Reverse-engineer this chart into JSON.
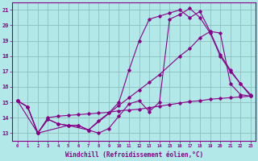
{
  "background_color": "#b3e8e8",
  "grid_color": "#8fbfbf",
  "line_color": "#880088",
  "xlabel": "Windchill (Refroidissement éolien,°C)",
  "xlim": [
    -0.5,
    23.5
  ],
  "ylim": [
    12.5,
    21.5
  ],
  "yticks": [
    13,
    14,
    15,
    16,
    17,
    18,
    19,
    20,
    21
  ],
  "xticks": [
    0,
    1,
    2,
    3,
    4,
    5,
    6,
    7,
    8,
    9,
    10,
    11,
    12,
    13,
    14,
    15,
    16,
    17,
    18,
    19,
    20,
    21,
    22,
    23
  ],
  "series": [
    {
      "x": [
        0,
        1,
        2,
        3,
        4,
        5,
        6,
        7,
        8,
        9,
        10,
        11,
        12,
        13,
        14,
        15,
        16,
        17,
        18,
        19,
        20,
        21,
        22,
        23
      ],
      "y": [
        15.1,
        14.7,
        13.0,
        13.9,
        13.6,
        13.5,
        13.5,
        13.2,
        13.8,
        14.3,
        15.0,
        17.1,
        19.0,
        20.4,
        20.6,
        20.8,
        21.0,
        20.5,
        20.9,
        19.6,
        18.1,
        17.1,
        16.2,
        15.4
      ]
    },
    {
      "x": [
        0,
        1,
        2,
        3,
        4,
        5,
        6,
        7,
        8,
        9,
        10,
        11,
        12,
        13,
        14,
        15,
        16,
        17,
        18,
        19,
        20,
        21,
        22,
        23
      ],
      "y": [
        15.1,
        14.7,
        13.0,
        13.9,
        13.6,
        13.5,
        13.5,
        13.2,
        13.0,
        13.3,
        14.1,
        14.9,
        15.1,
        14.4,
        15.0,
        20.4,
        20.7,
        21.1,
        20.5,
        19.5,
        18.0,
        17.0,
        16.2,
        15.5
      ]
    },
    {
      "x": [
        0,
        2,
        5,
        7,
        10,
        11,
        12,
        13,
        14,
        16,
        17,
        18,
        19,
        20,
        21,
        22,
        23
      ],
      "y": [
        15.1,
        13.0,
        13.5,
        13.2,
        14.8,
        15.3,
        15.8,
        16.3,
        16.8,
        18.0,
        18.5,
        19.2,
        19.6,
        19.5,
        16.2,
        15.5,
        15.4
      ]
    },
    {
      "x": [
        0,
        1,
        2,
        3,
        4,
        5,
        6,
        7,
        8,
        9,
        10,
        11,
        12,
        13,
        14,
        15,
        16,
        17,
        18,
        19,
        20,
        21,
        22,
        23
      ],
      "y": [
        15.1,
        14.7,
        13.0,
        14.0,
        14.1,
        14.15,
        14.2,
        14.25,
        14.3,
        14.35,
        14.45,
        14.5,
        14.55,
        14.65,
        14.75,
        14.85,
        14.95,
        15.05,
        15.1,
        15.2,
        15.25,
        15.3,
        15.35,
        15.4
      ]
    }
  ]
}
